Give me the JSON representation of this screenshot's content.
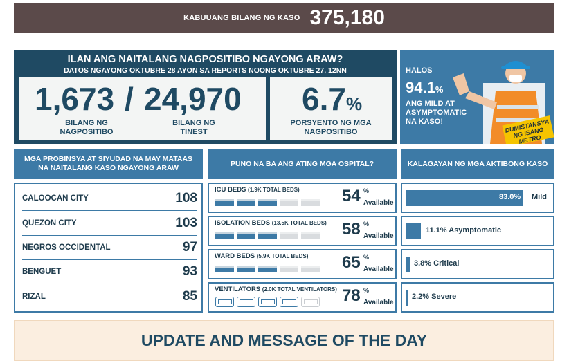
{
  "total": {
    "label": "KABUUANG BILANG NG KASO",
    "value": "375,180"
  },
  "today": {
    "title": "ILAN ANG NAITALANG NAGPOSITIBO NGAYONG ARAW?",
    "subtitle": "DATOS NGAYONG OKTUBRE 28 AYON SA REPORTS NOONG OKTUBRE 27, 12NN",
    "positives": "1,673",
    "slash": "/",
    "tested": "24,970",
    "positives_label_1": "BILANG NG",
    "positives_label_2": "NAGPOSITIBO",
    "tested_label_1": "BILANG NG",
    "tested_label_2": "TINEST",
    "rate": "6.7",
    "rate_sign": "%",
    "rate_label_1": "PORSYENTO NG MGA",
    "rate_label_2": "NAGPOSITIBO"
  },
  "promo": {
    "halos": "HALOS",
    "pct": "94.1",
    "pct_sign": "%",
    "desc": "ANG MILD AT ASYMPTOMATIC NA KASO!",
    "sign_1": "DUMISTANSYA",
    "sign_2": "NG ISANG",
    "sign_3": "METRO"
  },
  "headers": {
    "provinces": "MGA PROBINSYA AT SIYUDAD NA MAY MATAAS NA NAITALANG KASO NGAYONG ARAW",
    "hospitals": "PUNO NA BA ANG ATING MGA OSPITAL?",
    "status": "KALAGAYAN NG MGA AKTIBONG KASO"
  },
  "provinces": [
    {
      "name": "CALOOCAN CITY",
      "value": "108"
    },
    {
      "name": "QUEZON CITY",
      "value": "103"
    },
    {
      "name": "NEGROS OCCIDENTAL",
      "value": "97"
    },
    {
      "name": "BENGUET",
      "value": "93"
    },
    {
      "name": "RIZAL",
      "value": "85"
    }
  ],
  "hospitals": [
    {
      "label": "ICU BEDS",
      "sub": "(1.9K TOTAL BEDS)",
      "pct": "54",
      "pct_sign": "%",
      "available": "Available",
      "filled_units": 3,
      "icon": "bed-icon"
    },
    {
      "label": "ISOLATION BEDS",
      "sub": "(13.5K TOTAL BEDS)",
      "pct": "58",
      "pct_sign": "%",
      "available": "Available",
      "filled_units": 3,
      "icon": "bed-icon"
    },
    {
      "label": "WARD BEDS",
      "sub": "(5.9K TOTAL BEDS)",
      "pct": "65",
      "pct_sign": "%",
      "available": "Available",
      "filled_units": 3,
      "icon": "bed-icon"
    },
    {
      "label": "VENTILATORS",
      "sub": "(2.0K TOTAL VENTILATORS)",
      "pct": "78",
      "pct_sign": "%",
      "available": "Available",
      "filled_units": 4,
      "icon": "ventilator-icon"
    }
  ],
  "case_status": [
    {
      "pct": "83.0%",
      "label": "Mild",
      "fraction": 0.83
    },
    {
      "pct": "11.1%",
      "label": "Asymptomatic",
      "fraction": 0.111
    },
    {
      "pct": "3.8%",
      "label": "Critical",
      "fraction": 0.038
    },
    {
      "pct": "2.2%",
      "label": "Severe",
      "fraction": 0.022
    }
  ],
  "message": {
    "title": "UPDATE AND MESSAGE OF THE DAY"
  },
  "colors": {
    "navy": "#1f4a63",
    "blue": "#3d7aa6",
    "brown": "#5b4a4a",
    "cream": "#fbeee0",
    "yellow": "#f5c400"
  }
}
